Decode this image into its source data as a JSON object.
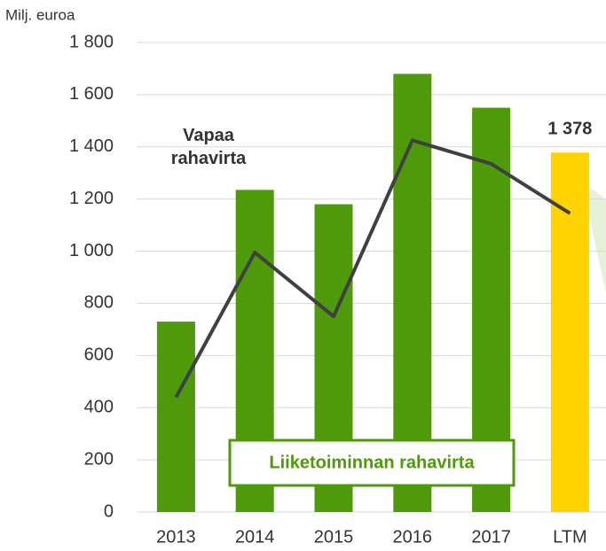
{
  "chart_data": {
    "type": "bar",
    "y_axis_label": "Milj. euroa",
    "categories": [
      "2013",
      "2014",
      "2015",
      "2016",
      "2017",
      "LTM"
    ],
    "series": [
      {
        "name": "Liiketoiminnan rahavirta",
        "type": "bar",
        "color": "#4f9a0a",
        "colors": [
          "#4f9a0a",
          "#4f9a0a",
          "#4f9a0a",
          "#4f9a0a",
          "#4f9a0a",
          "#ffd200"
        ],
        "values": [
          730,
          1235,
          1180,
          1680,
          1550,
          1378
        ],
        "value_labels": [
          null,
          null,
          null,
          null,
          null,
          "1 378"
        ]
      },
      {
        "name": "Vapaa rahavirta",
        "type": "line",
        "color": "#404040",
        "values": [
          440,
          995,
          750,
          1425,
          1335,
          1145
        ]
      }
    ],
    "ylim": [
      0,
      1800
    ],
    "yticks": [
      0,
      200,
      400,
      600,
      800,
      {
        "value": 1000,
        "label": "1 000"
      },
      {
        "value": 1200,
        "label": "1 200"
      },
      {
        "value": 1400,
        "label": "1 400"
      },
      {
        "value": 1600,
        "label": "1 600"
      },
      {
        "value": 1800,
        "label": "1 800"
      }
    ],
    "grid": true
  }
}
